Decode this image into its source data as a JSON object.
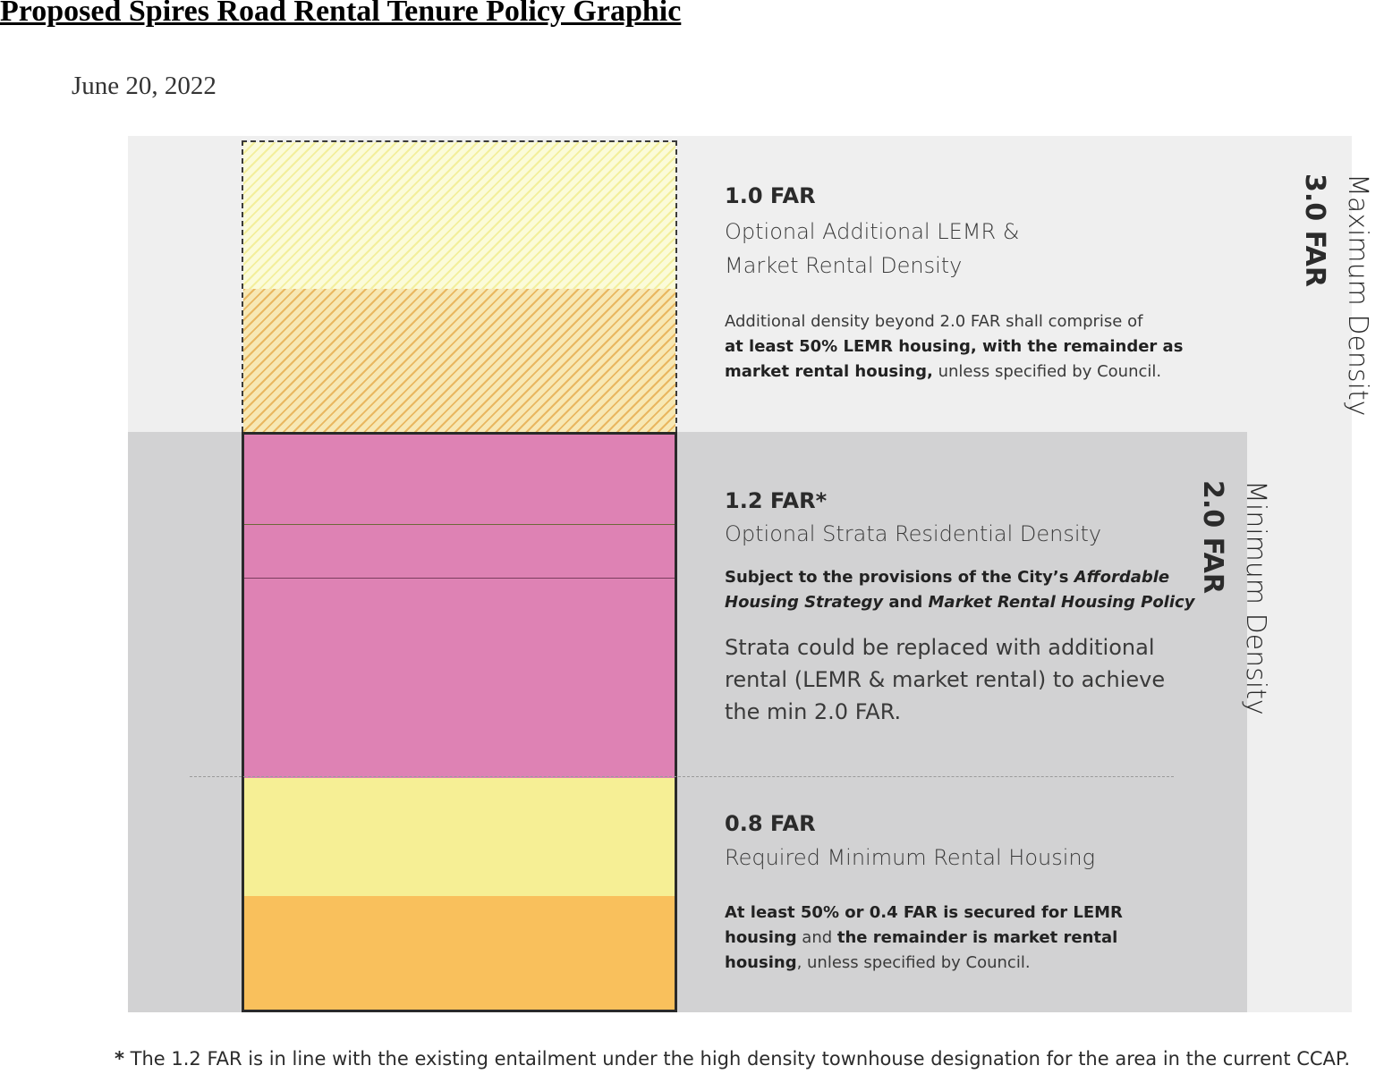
{
  "document": {
    "title": "Proposed Spires Road Rental Tenure Policy Graphic",
    "date": "June 20, 2022"
  },
  "colors": {
    "strata": "#de82b4",
    "market_rental": "#f6ef95",
    "lemr": "#f9c05c",
    "optional_hatch_light": "#f3ef9c",
    "optional_hatch_orange": "#e9b760",
    "maximum_band": "#efefef",
    "minimum_band": "#d2d2d3"
  },
  "labels": {
    "maximum": {
      "far": "3.0 FAR",
      "label": "Maximum Density"
    },
    "minimum": {
      "far": "2.0 FAR",
      "label": "Minimum Density"
    }
  },
  "sections": {
    "optional_additional": {
      "far": "1.0 FAR",
      "title_line1": "Optional Additional LEMR &",
      "title_line2": "Market Rental Density",
      "note_line1": "Additional density beyond 2.0 FAR shall comprise of",
      "note_line2_bold": "at least 50% LEMR housing, with the remainder as",
      "note_line3_bold": "market rental housing,",
      "note_line3_rest": " unless specified by Council."
    },
    "strata": {
      "far": "1.2 FAR*",
      "title": "Optional Strata Residential Density",
      "note_line1_bold": "Subject to the provisions of the City’s ",
      "note_line1_italic": "Affordable",
      "note_line2_italic_a": "Housing Strategy",
      "note_line2_bold": " and ",
      "note_line2_italic_b": "Market Rental Housing Policy",
      "body_line1": "Strata could be replaced with additional",
      "body_line2": "rental (LEMR & market rental) to achieve",
      "body_line3": "the min 2.0 FAR."
    },
    "required_rental": {
      "far": "0.8 FAR",
      "title": "Required Minimum Rental Housing",
      "note_line1_bold": "At least 50% or 0.4 FAR is secured for LEMR",
      "note_line2_bold_a": "housing",
      "note_line2_plain": " and ",
      "note_line2_bold_b": "the remainder is market rental",
      "note_line3_bold": "housing",
      "note_line3_rest": ", unless specified by Council."
    }
  },
  "footnote": {
    "star": "*",
    "text": " The 1.2 FAR is in line with the existing entailment under the high density townhouse designation for the area in the current CCAP."
  }
}
